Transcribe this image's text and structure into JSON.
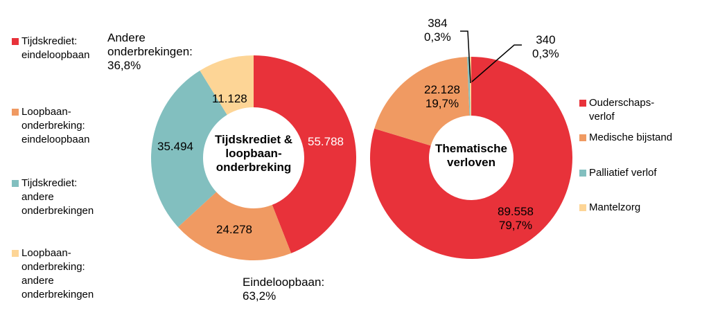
{
  "chart_data": [
    {
      "type": "pie",
      "donut": true,
      "title": "Tijdskrediet & loopbaan-onderbreking",
      "title_lines": [
        "Tijdskrediet &",
        "loopbaan-",
        "onderbreking"
      ],
      "legend_position": "left",
      "slices": [
        {
          "name": "Tijdskrediet: eindeloopbaan",
          "legend_lines": [
            "Tijdskrediet:",
            "eindeloopbaan"
          ],
          "value": 55788,
          "label": "55.788",
          "color": "#E8323A"
        },
        {
          "name": "Loopbaan-onderbreking: eindeloopbaan",
          "legend_lines": [
            "Loopbaan-",
            "onderbreking:",
            "eindeloopbaan"
          ],
          "value": 24278,
          "label": "24.278",
          "color": "#F09A62"
        },
        {
          "name": "Tijdskrediet: andere onderbrekingen",
          "legend_lines": [
            "Tijdskrediet:",
            "andere",
            "onderbrekingen"
          ],
          "value": 35494,
          "label": "35.494",
          "color": "#82BFBF"
        },
        {
          "name": "Loopbaan-onderbreking: andere onderbrekingen",
          "legend_lines": [
            "Loopbaan-",
            "onderbreking:",
            "andere",
            "onderbrekingen"
          ],
          "value": 11128,
          "label": "11.128",
          "color": "#FDD596"
        }
      ],
      "annotations": [
        {
          "lines": [
            "Andere",
            "onderbrekingen:",
            "36,8%"
          ]
        },
        {
          "lines": [
            "Eindeloopbaan:",
            "63,2%"
          ]
        }
      ]
    },
    {
      "type": "pie",
      "donut": true,
      "title": "Thematische verloven",
      "title_lines": [
        "Thematische",
        "verloven"
      ],
      "legend_position": "right",
      "slices": [
        {
          "name": "Ouderschapsverlof",
          "legend_lines": [
            "Ouderschaps-",
            "verlof"
          ],
          "value": 89558,
          "label": "89.558",
          "pct": "79,7%",
          "color": "#E8323A"
        },
        {
          "name": "Medische bijstand",
          "legend_lines": [
            "Medische bijstand"
          ],
          "value": 22128,
          "label": "22.128",
          "pct": "19,7%",
          "color": "#F09A62"
        },
        {
          "name": "Palliatief verlof",
          "legend_lines": [
            "Palliatief verlof"
          ],
          "value": 384,
          "label": "384",
          "pct": "0,3%",
          "color": "#82BFBF"
        },
        {
          "name": "Mantelzorg",
          "legend_lines": [
            "Mantelzorg"
          ],
          "value": 340,
          "label": "340",
          "pct": "0,3%",
          "color": "#FDD596"
        }
      ]
    }
  ]
}
